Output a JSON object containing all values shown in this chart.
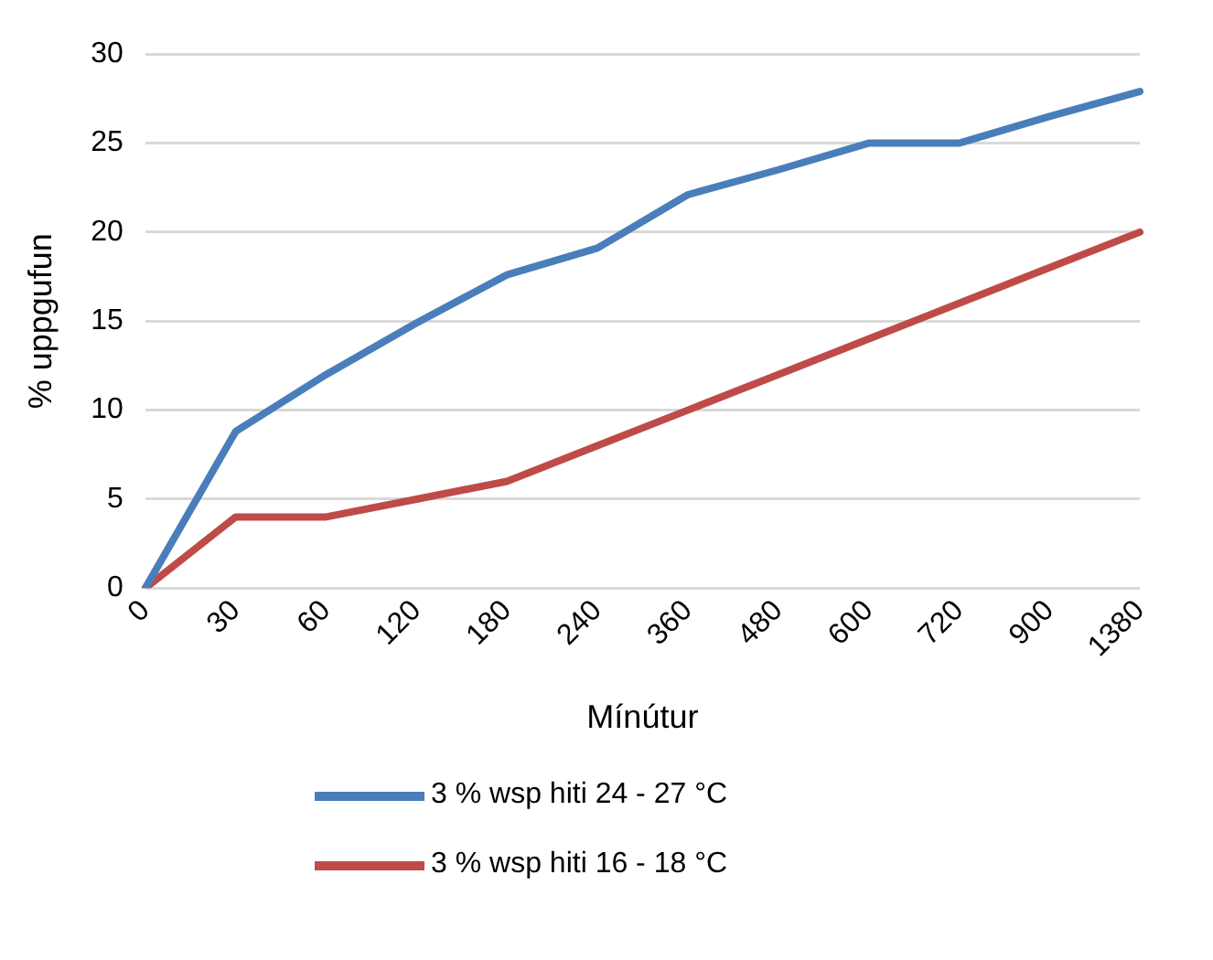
{
  "chart_data": {
    "type": "line",
    "xlabel": "Mínútur",
    "ylabel": "% uppgufun",
    "categories": [
      "0",
      "30",
      "60",
      "120",
      "180",
      "240",
      "360",
      "480",
      "600",
      "720",
      "900",
      "1380"
    ],
    "series": [
      {
        "name": "3 % wsp hiti 24 - 27 °C",
        "color": "#4a7ebb",
        "values": [
          0,
          8.8,
          12,
          14.9,
          17.6,
          19.1,
          22.1,
          23.5,
          25,
          25,
          26.5,
          27.9
        ]
      },
      {
        "name": "3 % wsp hiti 16 - 18 °C",
        "color": "#be4b48",
        "values": [
          0,
          4,
          4,
          5,
          6,
          8,
          10,
          12,
          14,
          16,
          18,
          20
        ]
      }
    ],
    "ylim": [
      0,
      30
    ],
    "yticks": [
      0,
      5,
      10,
      15,
      20,
      25,
      30
    ],
    "grid": "y",
    "legend": "bottom",
    "marker": "none",
    "line_style": "solid"
  }
}
